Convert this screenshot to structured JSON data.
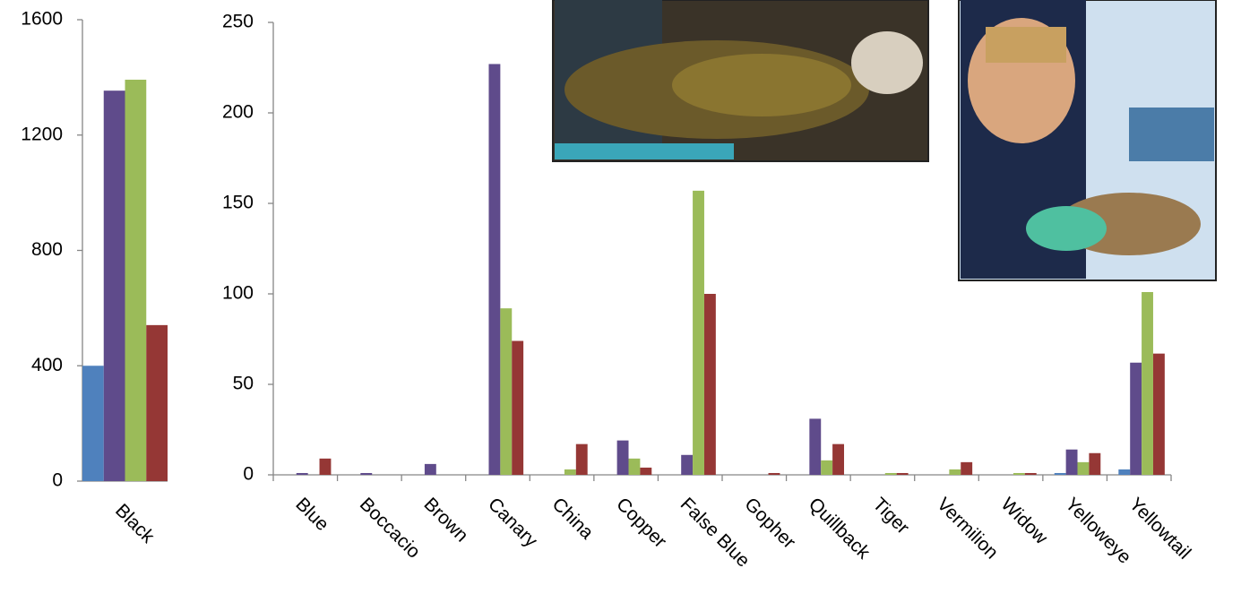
{
  "chart_data": [
    {
      "type": "bar",
      "categories": [
        "Black"
      ],
      "series": [
        {
          "color": "#4f81bd",
          "values": [
            400
          ]
        },
        {
          "color": "#5f4b8b",
          "values": [
            1354
          ]
        },
        {
          "color": "#9bbb59",
          "values": [
            1392
          ]
        },
        {
          "color": "#953735",
          "values": [
            541
          ]
        }
      ],
      "ylim": [
        0,
        1600
      ],
      "yticks": [
        0,
        400,
        800,
        1200,
        1600
      ]
    },
    {
      "type": "bar",
      "categories": [
        "Blue",
        "Boccacio",
        "Brown",
        "Canary",
        "China",
        "Copper",
        "False Blue",
        "Gopher",
        "Quillback",
        "Tiger",
        "Vermilion",
        "Widow",
        "Yelloweye",
        "Yellowtail"
      ],
      "series": [
        {
          "color": "#4f81bd",
          "values": [
            0,
            0,
            0,
            0,
            0,
            0,
            0,
            0,
            0,
            0,
            0,
            0,
            1,
            3
          ]
        },
        {
          "color": "#5f4b8b",
          "values": [
            1,
            1,
            6,
            227,
            0,
            19,
            11,
            0,
            31,
            0,
            0,
            0,
            14,
            62
          ]
        },
        {
          "color": "#9bbb59",
          "values": [
            0,
            0,
            0,
            92,
            3,
            9,
            157,
            0,
            8,
            1,
            3,
            1,
            7,
            101
          ]
        },
        {
          "color": "#953735",
          "values": [
            9,
            0,
            0,
            74,
            17,
            4,
            100,
            1,
            17,
            1,
            7,
            1,
            12,
            67
          ]
        }
      ],
      "ylim": [
        0,
        250
      ],
      "yticks": [
        0,
        50,
        100,
        150,
        200,
        250
      ]
    }
  ]
}
